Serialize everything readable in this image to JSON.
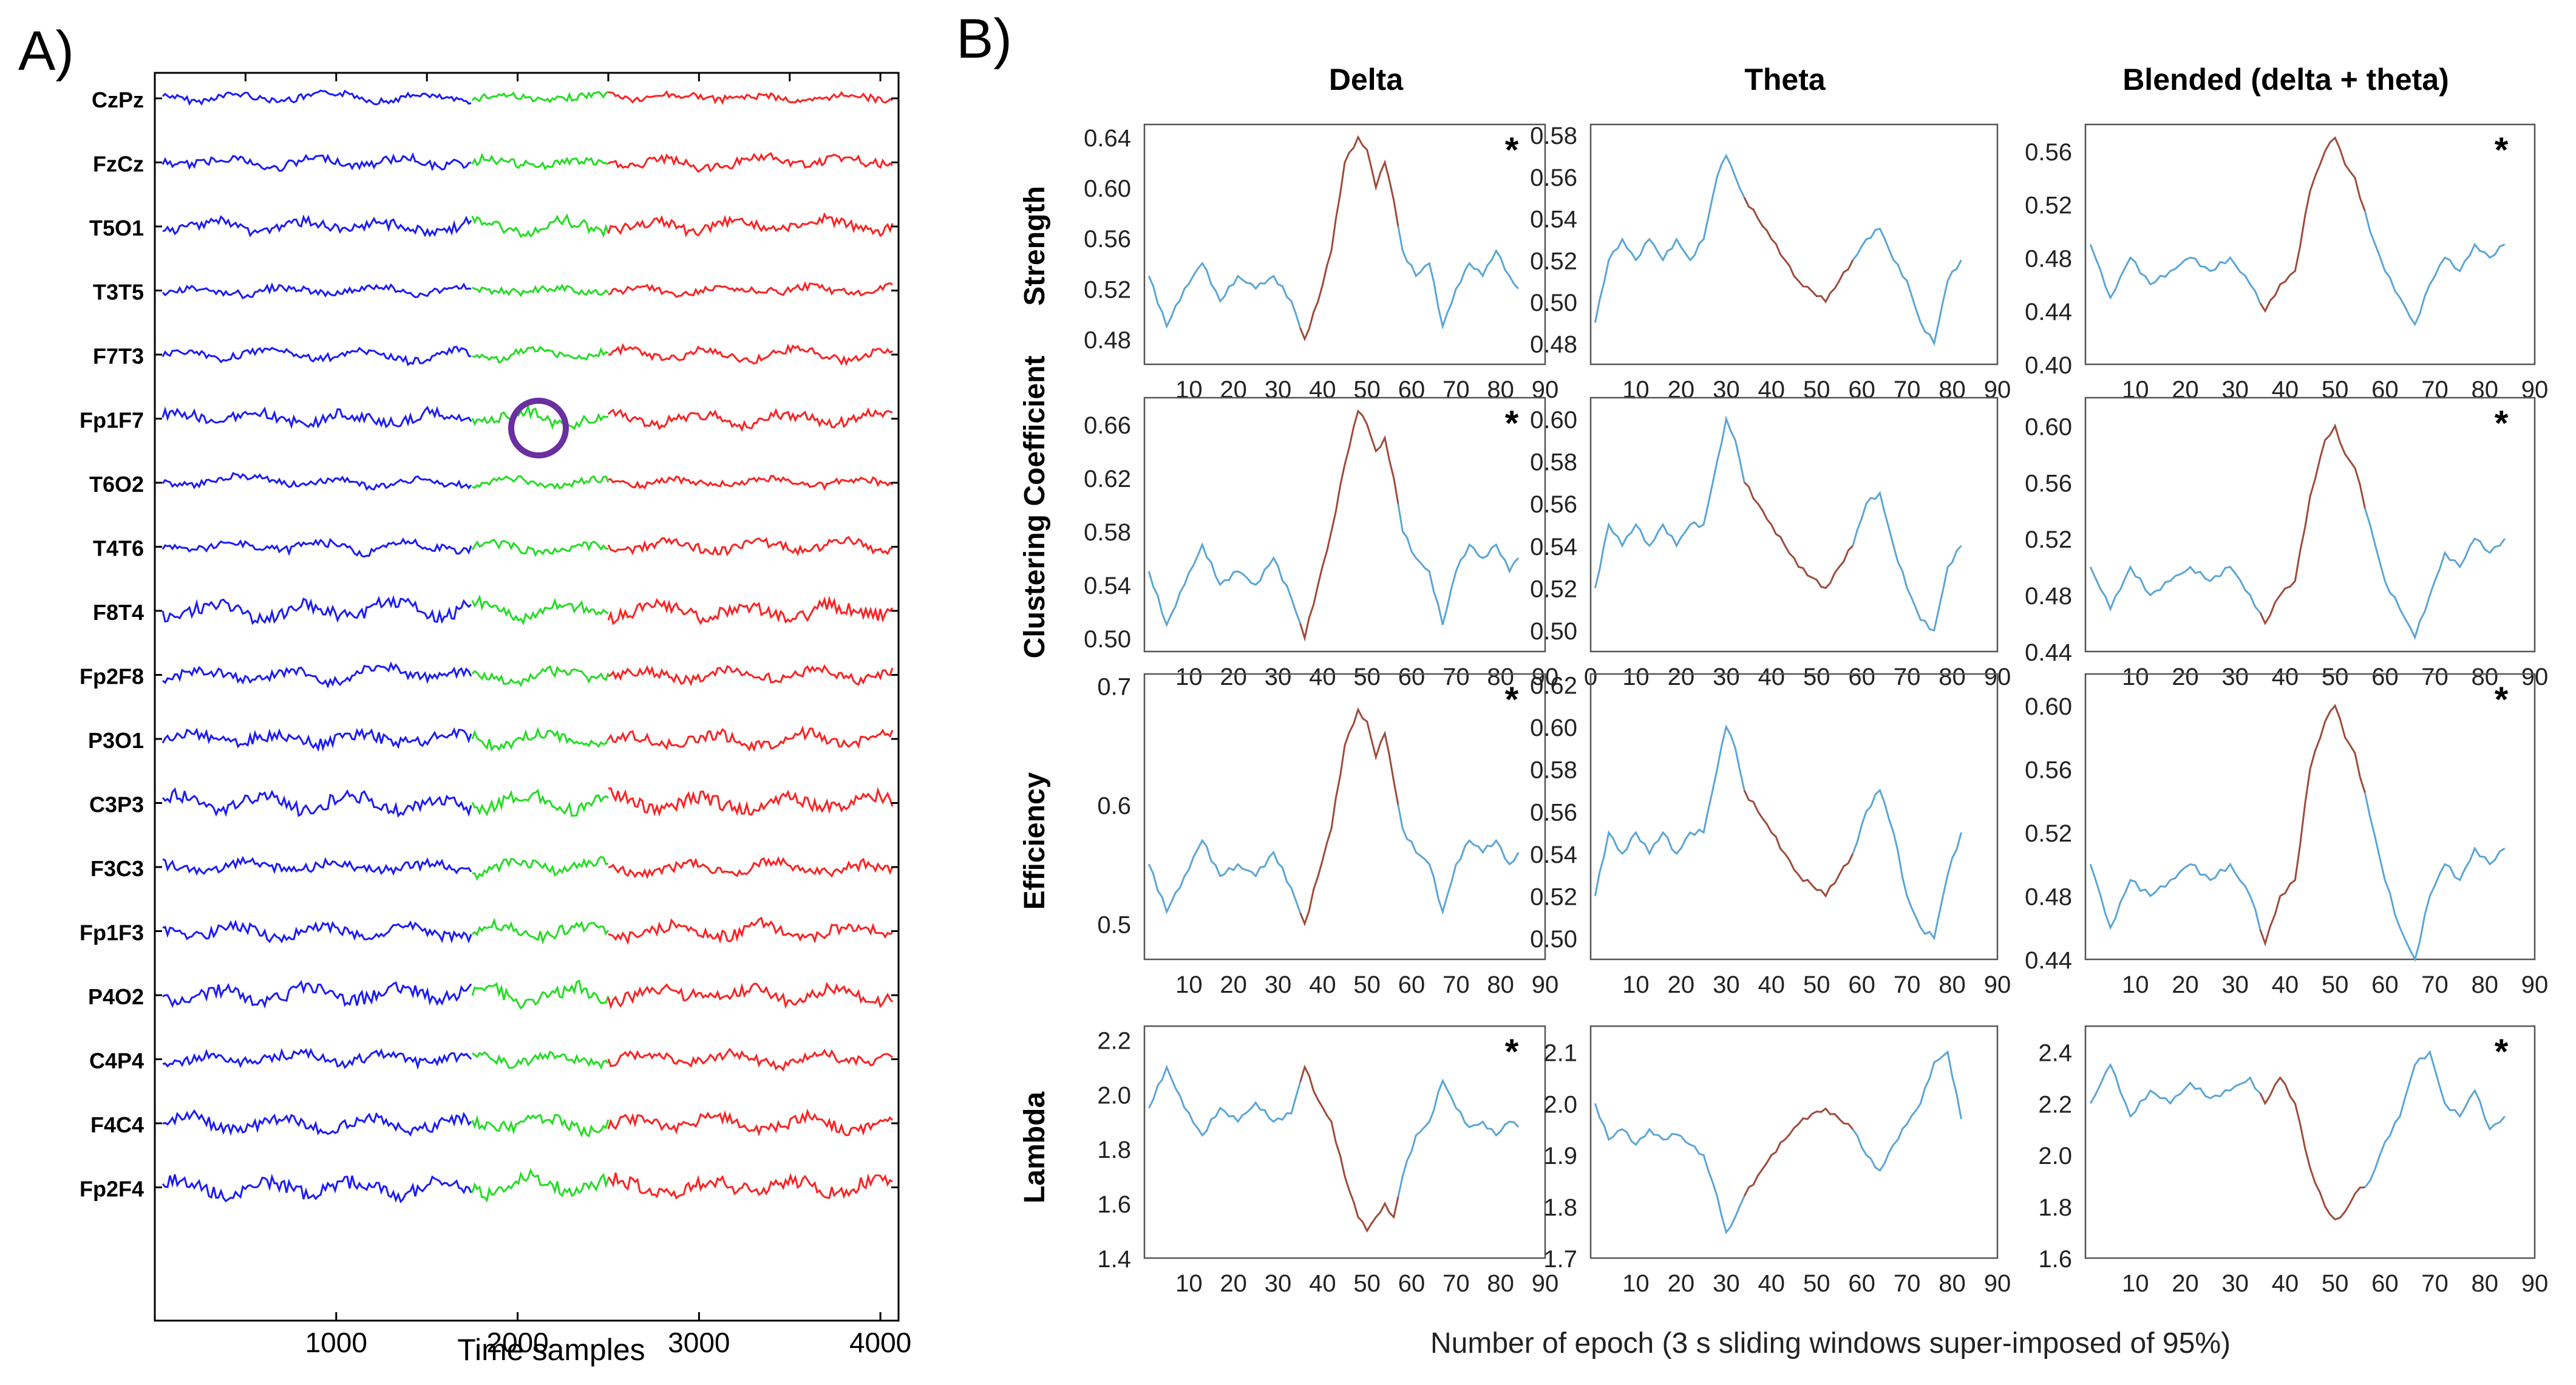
{
  "panel_a": {
    "label": "A)",
    "channels": [
      "CzPz",
      "FzCz",
      "T5O1",
      "T3T5",
      "F7T3",
      "Fp1F7",
      "T6O2",
      "T4T6",
      "F8T4",
      "Fp2F8",
      "P3O1",
      "C3P3",
      "F3C3",
      "Fp1F3",
      "P4O2",
      "C4P4",
      "F4C4",
      "Fp2F4"
    ],
    "x_ticks": [
      "1000",
      "2000",
      "3000",
      "4000"
    ],
    "xlabel": "Time samples",
    "colors": {
      "segment1": "#1a1aff",
      "segment2": "#22dd22",
      "segment3": "#ff2020",
      "marker": "#6a2fa0"
    }
  },
  "panel_b": {
    "label": "B)",
    "columns": [
      "Delta",
      "Theta",
      "Blended (delta + theta)"
    ],
    "rows": [
      "Strength",
      "Clustering Coefficient",
      "Efficiency",
      "Lambda"
    ],
    "xlabel": "Number of epoch (3 s sliding windows super-imposed of 95%)",
    "significance_mark": "*",
    "colors": {
      "baseline": "#5aa5d6",
      "highlight": "#9e4a3a"
    }
  },
  "chart_data": [
    {
      "type": "line",
      "row": "Strength",
      "column": "Delta",
      "yticks": [
        "0.64",
        "0.60",
        "0.56",
        "0.52",
        "0.48"
      ],
      "xticks": [
        "10",
        "20",
        "30",
        "40",
        "50",
        "60",
        "70",
        "80",
        "90"
      ],
      "ylim": [
        0.46,
        0.65
      ],
      "xlim": [
        0,
        90
      ],
      "asterisk": true,
      "x": [
        1,
        5,
        9,
        13,
        17,
        21,
        25,
        29,
        33,
        36,
        39,
        42,
        45,
        48,
        50,
        52,
        54,
        56,
        58,
        61,
        64,
        67,
        70,
        73,
        76,
        79,
        82,
        84
      ],
      "y": [
        0.53,
        0.49,
        0.52,
        0.54,
        0.51,
        0.53,
        0.52,
        0.53,
        0.51,
        0.48,
        0.51,
        0.55,
        0.62,
        0.64,
        0.63,
        0.6,
        0.62,
        0.59,
        0.55,
        0.53,
        0.54,
        0.49,
        0.52,
        0.54,
        0.53,
        0.55,
        0.53,
        0.52
      ],
      "highlight_range": [
        36,
        57
      ]
    },
    {
      "type": "line",
      "row": "Strength",
      "column": "Theta",
      "yticks": [
        "0.58",
        "0.56",
        "0.54",
        "0.52",
        "0.50",
        "0.48"
      ],
      "xticks": [
        "10",
        "20",
        "30",
        "40",
        "50",
        "60",
        "70",
        "80",
        "90"
      ],
      "ylim": [
        0.47,
        0.585
      ],
      "xlim": [
        0,
        90
      ],
      "asterisk": false,
      "x": [
        1,
        4,
        7,
        10,
        13,
        16,
        19,
        22,
        25,
        28,
        30,
        32,
        34,
        37,
        40,
        43,
        46,
        49,
        52,
        55,
        58,
        61,
        64,
        67,
        70,
        73,
        76,
        79,
        82
      ],
      "y": [
        0.49,
        0.52,
        0.53,
        0.52,
        0.53,
        0.52,
        0.53,
        0.52,
        0.53,
        0.56,
        0.57,
        0.56,
        0.55,
        0.54,
        0.53,
        0.52,
        0.51,
        0.505,
        0.5,
        0.51,
        0.52,
        0.53,
        0.535,
        0.52,
        0.51,
        0.49,
        0.48,
        0.51,
        0.52
      ],
      "highlight_range": [
        35,
        58
      ]
    },
    {
      "type": "line",
      "row": "Strength",
      "column": "Blended (delta + theta)",
      "yticks": [
        "0.56",
        "0.52",
        "0.48",
        "0.44",
        "0.40"
      ],
      "xticks": [
        "10",
        "20",
        "30",
        "40",
        "50",
        "60",
        "70",
        "80",
        "90"
      ],
      "ylim": [
        0.4,
        0.58
      ],
      "xlim": [
        0,
        90
      ],
      "asterisk": true,
      "x": [
        1,
        5,
        9,
        13,
        17,
        21,
        25,
        29,
        33,
        36,
        39,
        42,
        45,
        48,
        50,
        52,
        54,
        57,
        60,
        63,
        66,
        69,
        72,
        75,
        78,
        81,
        84
      ],
      "y": [
        0.49,
        0.45,
        0.48,
        0.46,
        0.47,
        0.48,
        0.47,
        0.48,
        0.46,
        0.44,
        0.46,
        0.47,
        0.53,
        0.56,
        0.57,
        0.55,
        0.54,
        0.5,
        0.47,
        0.45,
        0.43,
        0.46,
        0.48,
        0.47,
        0.49,
        0.48,
        0.49
      ],
      "highlight_range": [
        36,
        56
      ]
    },
    {
      "type": "line",
      "row": "Clustering Coefficient",
      "column": "Delta",
      "yticks": [
        "0.66",
        "0.62",
        "0.58",
        "0.54",
        "0.50"
      ],
      "xticks": [
        "10",
        "20",
        "30",
        "40",
        "50",
        "60",
        "70",
        "80",
        "90"
      ],
      "ylim": [
        0.49,
        0.68
      ],
      "xlim": [
        0,
        90
      ],
      "asterisk": true,
      "x": [
        1,
        5,
        9,
        13,
        17,
        21,
        25,
        29,
        33,
        36,
        39,
        42,
        45,
        48,
        50,
        52,
        54,
        56,
        58,
        61,
        64,
        67,
        70,
        73,
        76,
        79,
        82,
        84
      ],
      "y": [
        0.55,
        0.51,
        0.54,
        0.57,
        0.54,
        0.55,
        0.54,
        0.56,
        0.53,
        0.5,
        0.54,
        0.58,
        0.63,
        0.67,
        0.66,
        0.64,
        0.65,
        0.62,
        0.58,
        0.56,
        0.55,
        0.51,
        0.55,
        0.57,
        0.56,
        0.57,
        0.55,
        0.56
      ],
      "highlight_range": [
        36,
        57
      ]
    },
    {
      "type": "line",
      "row": "Clustering Coefficient",
      "column": "Theta",
      "yticks": [
        "0.60",
        "0.58",
        "0.56",
        "0.54",
        "0.52",
        "0.50"
      ],
      "xticks": [
        "0",
        "10",
        "20",
        "30",
        "40",
        "50",
        "60",
        "70",
        "80",
        "90"
      ],
      "ylim": [
        0.49,
        0.61
      ],
      "xlim": [
        0,
        90
      ],
      "asterisk": false,
      "x": [
        1,
        4,
        7,
        10,
        13,
        16,
        19,
        22,
        25,
        28,
        30,
        32,
        34,
        37,
        40,
        43,
        46,
        49,
        52,
        55,
        58,
        61,
        64,
        67,
        70,
        73,
        76,
        79,
        82
      ],
      "y": [
        0.52,
        0.55,
        0.54,
        0.55,
        0.54,
        0.55,
        0.54,
        0.55,
        0.55,
        0.58,
        0.6,
        0.59,
        0.57,
        0.56,
        0.55,
        0.54,
        0.53,
        0.525,
        0.52,
        0.53,
        0.54,
        0.56,
        0.565,
        0.54,
        0.52,
        0.505,
        0.5,
        0.53,
        0.54
      ],
      "highlight_range": [
        35,
        58
      ]
    },
    {
      "type": "line",
      "row": "Clustering Coefficient",
      "column": "Blended (delta + theta)",
      "yticks": [
        "0.60",
        "0.56",
        "0.52",
        "0.48",
        "0.44"
      ],
      "xticks": [
        "10",
        "20",
        "30",
        "40",
        "50",
        "60",
        "70",
        "80",
        "90"
      ],
      "ylim": [
        0.44,
        0.62
      ],
      "xlim": [
        0,
        90
      ],
      "asterisk": true,
      "x": [
        1,
        5,
        9,
        13,
        17,
        21,
        25,
        29,
        33,
        36,
        39,
        42,
        45,
        48,
        50,
        52,
        54,
        57,
        60,
        63,
        66,
        69,
        72,
        75,
        78,
        81,
        84
      ],
      "y": [
        0.5,
        0.47,
        0.5,
        0.48,
        0.49,
        0.5,
        0.49,
        0.5,
        0.48,
        0.46,
        0.48,
        0.49,
        0.55,
        0.59,
        0.6,
        0.58,
        0.57,
        0.53,
        0.49,
        0.47,
        0.45,
        0.48,
        0.51,
        0.5,
        0.52,
        0.51,
        0.52
      ],
      "highlight_range": [
        36,
        56
      ]
    },
    {
      "type": "line",
      "row": "Efficiency",
      "column": "Delta",
      "yticks": [
        "0.7",
        "0.6",
        "0.5"
      ],
      "xticks": [
        "10",
        "20",
        "30",
        "40",
        "50",
        "60",
        "70",
        "80",
        "90"
      ],
      "ylim": [
        0.47,
        0.71
      ],
      "xlim": [
        0,
        90
      ],
      "asterisk": true,
      "x": [
        1,
        5,
        9,
        13,
        17,
        21,
        25,
        29,
        33,
        36,
        39,
        42,
        45,
        48,
        50,
        52,
        54,
        56,
        58,
        61,
        64,
        67,
        70,
        73,
        76,
        79,
        82,
        84
      ],
      "y": [
        0.55,
        0.51,
        0.54,
        0.57,
        0.54,
        0.55,
        0.54,
        0.56,
        0.53,
        0.5,
        0.54,
        0.58,
        0.65,
        0.68,
        0.67,
        0.64,
        0.66,
        0.62,
        0.58,
        0.56,
        0.55,
        0.51,
        0.55,
        0.57,
        0.56,
        0.57,
        0.55,
        0.56
      ],
      "highlight_range": [
        36,
        57
      ]
    },
    {
      "type": "line",
      "row": "Efficiency",
      "column": "Theta",
      "yticks": [
        "0.62",
        "0.60",
        "0.58",
        "0.56",
        "0.54",
        "0.52",
        "0.50"
      ],
      "xticks": [
        "10",
        "20",
        "30",
        "40",
        "50",
        "60",
        "70",
        "80",
        "90"
      ],
      "ylim": [
        0.49,
        0.625
      ],
      "xlim": [
        0,
        90
      ],
      "asterisk": false,
      "x": [
        1,
        4,
        7,
        10,
        13,
        16,
        19,
        22,
        25,
        28,
        30,
        32,
        34,
        37,
        40,
        43,
        46,
        49,
        52,
        55,
        58,
        61,
        64,
        67,
        70,
        73,
        76,
        79,
        82
      ],
      "y": [
        0.52,
        0.55,
        0.54,
        0.55,
        0.54,
        0.55,
        0.54,
        0.55,
        0.55,
        0.58,
        0.6,
        0.59,
        0.57,
        0.56,
        0.55,
        0.54,
        0.53,
        0.525,
        0.52,
        0.53,
        0.54,
        0.56,
        0.57,
        0.55,
        0.52,
        0.505,
        0.5,
        0.53,
        0.55
      ],
      "highlight_range": [
        35,
        58
      ]
    },
    {
      "type": "line",
      "row": "Efficiency",
      "column": "Blended (delta + theta)",
      "yticks": [
        "0.60",
        "0.56",
        "0.52",
        "0.48",
        "0.44"
      ],
      "xticks": [
        "10",
        "20",
        "30",
        "40",
        "50",
        "60",
        "70",
        "80",
        "90"
      ],
      "ylim": [
        0.44,
        0.62
      ],
      "xlim": [
        0,
        90
      ],
      "asterisk": true,
      "x": [
        1,
        5,
        9,
        13,
        17,
        21,
        25,
        29,
        33,
        36,
        39,
        42,
        45,
        48,
        50,
        52,
        54,
        57,
        60,
        63,
        66,
        69,
        72,
        75,
        78,
        81,
        84
      ],
      "y": [
        0.5,
        0.46,
        0.49,
        0.48,
        0.49,
        0.5,
        0.49,
        0.5,
        0.48,
        0.45,
        0.48,
        0.49,
        0.56,
        0.59,
        0.6,
        0.58,
        0.57,
        0.53,
        0.49,
        0.46,
        0.44,
        0.48,
        0.5,
        0.49,
        0.51,
        0.5,
        0.51
      ],
      "highlight_range": [
        36,
        56
      ]
    },
    {
      "type": "line",
      "row": "Lambda",
      "column": "Delta",
      "yticks": [
        "2.2",
        "2.0",
        "1.8",
        "1.6",
        "1.4"
      ],
      "xticks": [
        "10",
        "20",
        "30",
        "40",
        "50",
        "60",
        "70",
        "80",
        "90"
      ],
      "ylim": [
        1.4,
        2.25
      ],
      "xlim": [
        0,
        90
      ],
      "asterisk": true,
      "x": [
        1,
        5,
        9,
        13,
        17,
        21,
        25,
        29,
        33,
        36,
        39,
        42,
        45,
        48,
        50,
        52,
        54,
        56,
        58,
        61,
        64,
        67,
        70,
        73,
        76,
        79,
        82,
        84
      ],
      "y": [
        1.95,
        2.1,
        1.95,
        1.85,
        1.95,
        1.9,
        1.97,
        1.9,
        1.93,
        2.1,
        1.98,
        1.9,
        1.7,
        1.55,
        1.5,
        1.55,
        1.6,
        1.55,
        1.7,
        1.85,
        1.9,
        2.05,
        1.95,
        1.88,
        1.9,
        1.85,
        1.9,
        1.88
      ],
      "highlight_range": [
        36,
        57
      ]
    },
    {
      "type": "line",
      "row": "Lambda",
      "column": "Theta",
      "yticks": [
        "2.1",
        "2.0",
        "1.9",
        "1.8",
        "1.7"
      ],
      "xticks": [
        "10",
        "20",
        "30",
        "40",
        "50",
        "60",
        "70",
        "80",
        "90"
      ],
      "ylim": [
        1.7,
        2.15
      ],
      "xlim": [
        0,
        90
      ],
      "asterisk": false,
      "x": [
        1,
        4,
        7,
        10,
        13,
        16,
        19,
        22,
        25,
        28,
        30,
        32,
        34,
        37,
        40,
        43,
        46,
        49,
        52,
        55,
        58,
        61,
        64,
        67,
        70,
        73,
        76,
        79,
        82
      ],
      "y": [
        2.0,
        1.93,
        1.95,
        1.92,
        1.95,
        1.93,
        1.94,
        1.92,
        1.9,
        1.82,
        1.75,
        1.78,
        1.82,
        1.86,
        1.9,
        1.93,
        1.96,
        1.98,
        1.99,
        1.97,
        1.95,
        1.9,
        1.87,
        1.92,
        1.96,
        2.0,
        2.08,
        2.1,
        1.97
      ],
      "highlight_range": [
        35,
        58
      ]
    },
    {
      "type": "line",
      "row": "Lambda",
      "column": "Blended (delta + theta)",
      "yticks": [
        "2.4",
        "2.2",
        "2.0",
        "1.8",
        "1.6"
      ],
      "xticks": [
        "10",
        "20",
        "30",
        "40",
        "50",
        "60",
        "70",
        "80",
        "90"
      ],
      "ylim": [
        1.6,
        2.5
      ],
      "xlim": [
        0,
        90
      ],
      "asterisk": true,
      "x": [
        1,
        5,
        9,
        13,
        17,
        21,
        25,
        29,
        33,
        36,
        39,
        42,
        45,
        48,
        50,
        52,
        54,
        57,
        60,
        63,
        66,
        69,
        72,
        75,
        78,
        81,
        84
      ],
      "y": [
        2.2,
        2.35,
        2.15,
        2.25,
        2.2,
        2.28,
        2.22,
        2.25,
        2.3,
        2.2,
        2.3,
        2.2,
        1.95,
        1.8,
        1.75,
        1.78,
        1.85,
        1.9,
        2.05,
        2.15,
        2.35,
        2.4,
        2.2,
        2.15,
        2.25,
        2.1,
        2.15
      ],
      "highlight_range": [
        36,
        56
      ]
    }
  ]
}
